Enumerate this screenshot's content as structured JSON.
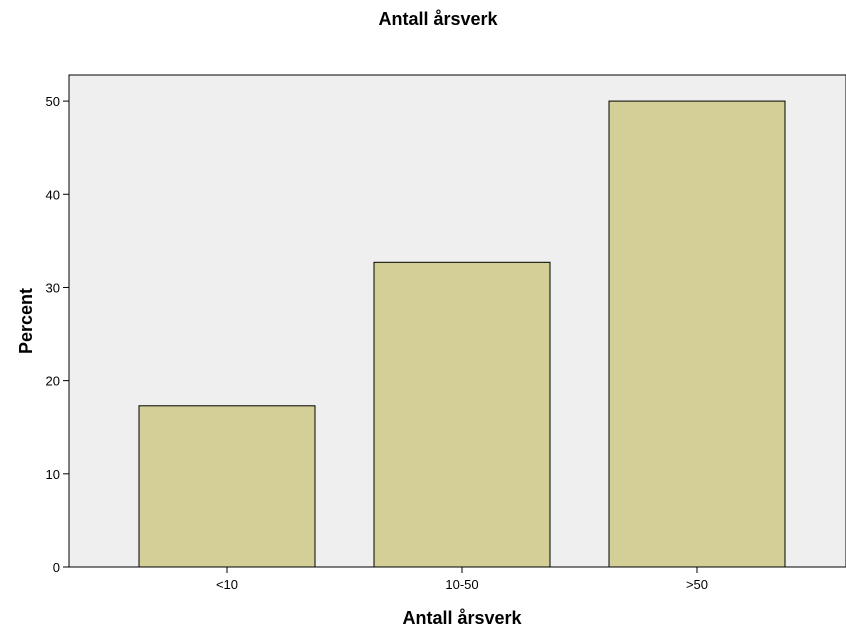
{
  "chart_data": {
    "type": "bar",
    "title": "Antall årsverk",
    "xlabel": "Antall årsverk",
    "ylabel": "Percent",
    "categories": [
      "<10",
      "10-50",
      ">50"
    ],
    "values": [
      17.3,
      32.7,
      50.0
    ],
    "ylim": [
      0,
      52.8
    ],
    "yticks": [
      0,
      10,
      20,
      30,
      40,
      50
    ],
    "grid": false,
    "legend": "none",
    "colors": {
      "bar_fill": "#d4cf96",
      "plot_background": "#efefef"
    }
  }
}
